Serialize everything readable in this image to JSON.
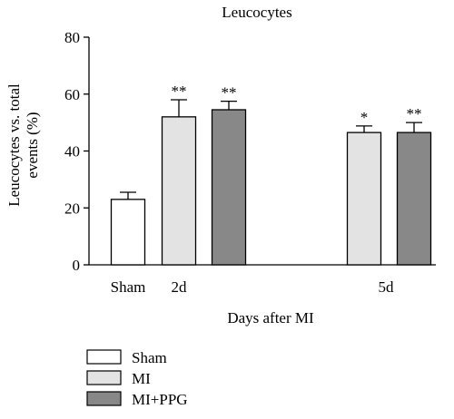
{
  "chart_data": {
    "type": "bar",
    "title": "Leucocytes",
    "ylabel_line1": "Leucocytes vs. total",
    "ylabel_line2": "events (%)",
    "xlabel": "Days after MI",
    "ylim": [
      0,
      80
    ],
    "yticks": [
      0,
      20,
      40,
      60,
      80
    ],
    "group_labels": [
      "Sham",
      "2d",
      "5d"
    ],
    "legend_position": "bottom-left",
    "series": [
      {
        "name": "Sham",
        "color": "#ffffff",
        "values": [
          {
            "group": "Sham",
            "value": 23,
            "error": 2.5,
            "sig": ""
          }
        ]
      },
      {
        "name": "MI",
        "color": "#e3e3e3",
        "values": [
          {
            "group": "2d",
            "value": 52,
            "error": 6,
            "sig": "**"
          },
          {
            "group": "5d",
            "value": 46.5,
            "error": 2.3,
            "sig": "*"
          }
        ]
      },
      {
        "name": "MI+PPG",
        "color": "#888888",
        "values": [
          {
            "group": "2d",
            "value": 54.5,
            "error": 3,
            "sig": "**"
          },
          {
            "group": "5d",
            "value": 46.5,
            "error": 3.5,
            "sig": "**"
          }
        ]
      }
    ]
  }
}
